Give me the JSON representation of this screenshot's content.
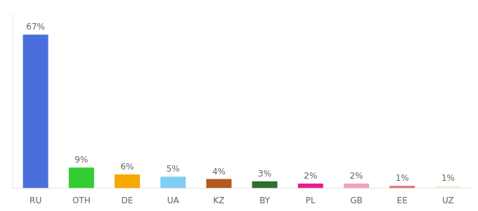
{
  "chart_data": {
    "type": "bar",
    "categories": [
      "RU",
      "OTH",
      "DE",
      "UA",
      "KZ",
      "BY",
      "PL",
      "GB",
      "EE",
      "UZ"
    ],
    "values": [
      67,
      9,
      6,
      5,
      4,
      3,
      2,
      2,
      1,
      1
    ],
    "value_labels": [
      "67%",
      "9%",
      "6%",
      "5%",
      "4%",
      "3%",
      "2%",
      "2%",
      "1%",
      "1%"
    ],
    "data_labels": true,
    "colors": [
      "#4a6fdc",
      "#33cc33",
      "#f5a800",
      "#7ecef4",
      "#b35a1f",
      "#2d6e2d",
      "#e91e8c",
      "#f0a0c0",
      "#e07070",
      "#f5f0d8"
    ],
    "ylim": [
      0,
      76
    ],
    "tick_labels": "x",
    "grid": false
  }
}
